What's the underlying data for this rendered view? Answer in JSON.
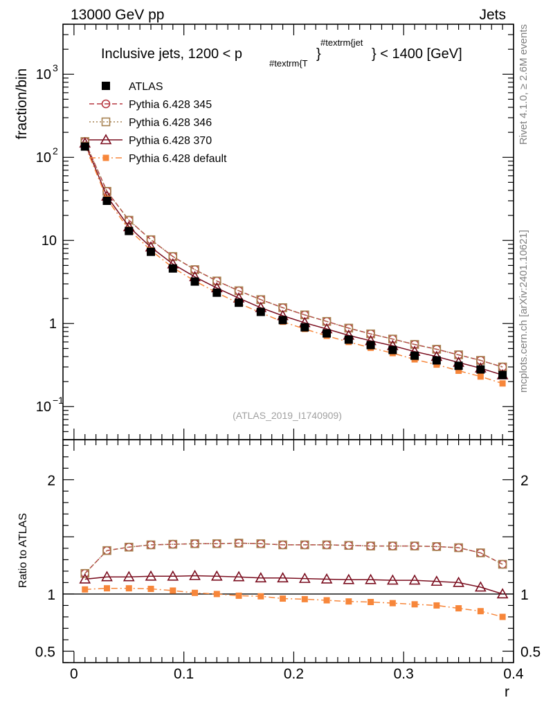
{
  "header": {
    "left": "13000 GeV pp",
    "right": "Jets"
  },
  "side_labels": {
    "rivet": "Rivet 4.1.0, ≥ 2.6M events",
    "mcplots": "mcplots.cern.ch [arXiv:2401.10621]"
  },
  "colors": {
    "atlas": "#000000",
    "p345": "#b5353f",
    "p346": "#a6804f",
    "p370": "#7a0d1e",
    "pdefault": "#f7863a",
    "watermark": "#a0a0a0"
  },
  "chart_data": [
    {
      "type": "line",
      "title_main": "Inclusive jets, 1200 < p",
      "title_sub": "#textrm{T",
      "title_sup": "#textrm{jet",
      "title_brace": "}",
      "title_end": "} < 1400 [GeV]",
      "watermark": "(ATLAS_2019_I1740909)",
      "ylabel": "fraction/bin",
      "yscale": "log",
      "ylim": [
        0.04,
        4000
      ],
      "ytick_labels": [
        {
          "value": 0.1,
          "base": "10",
          "exp": "−1"
        },
        {
          "value": 1,
          "base": "1",
          "exp": ""
        },
        {
          "value": 10,
          "base": "10",
          "exp": ""
        },
        {
          "value": 100,
          "base": "10",
          "exp": "2"
        },
        {
          "value": 1000,
          "base": "10",
          "exp": "3"
        }
      ],
      "x": [
        0.01,
        0.03,
        0.05,
        0.07,
        0.09,
        0.11,
        0.13,
        0.15,
        0.17,
        0.19,
        0.21,
        0.23,
        0.25,
        0.27,
        0.29,
        0.31,
        0.33,
        0.35,
        0.37,
        0.39
      ],
      "xlim": [
        -0.01,
        0.4
      ],
      "legend_position": "top-left",
      "series": [
        {
          "name": "ATLAS",
          "key": "atlas",
          "marker": "filled-square",
          "line": "none",
          "values": [
            135,
            30,
            13,
            7.3,
            4.6,
            3.2,
            2.35,
            1.78,
            1.38,
            1.1,
            0.9,
            0.76,
            0.64,
            0.55,
            0.48,
            0.41,
            0.36,
            0.31,
            0.28,
            0.24
          ]
        },
        {
          "name": "Pythia 6.428 345",
          "key": "p345",
          "marker": "open-circle",
          "line": "dashed",
          "values": [
            155,
            39,
            17.5,
            10.2,
            6.4,
            4.45,
            3.25,
            2.48,
            1.94,
            1.55,
            1.27,
            1.06,
            0.88,
            0.75,
            0.65,
            0.56,
            0.49,
            0.42,
            0.36,
            0.3
          ]
        },
        {
          "name": "Pythia 6.428 346",
          "key": "p346",
          "marker": "open-square",
          "line": "dotted",
          "values": [
            155,
            39,
            17.5,
            10.2,
            6.4,
            4.45,
            3.25,
            2.48,
            1.94,
            1.55,
            1.27,
            1.06,
            0.88,
            0.75,
            0.65,
            0.56,
            0.49,
            0.42,
            0.36,
            0.3
          ]
        },
        {
          "name": "Pythia 6.428 370",
          "key": "p370",
          "marker": "open-triangle",
          "line": "solid",
          "values": [
            148,
            34,
            14.6,
            8.3,
            5.2,
            3.65,
            2.68,
            2.02,
            1.55,
            1.24,
            1.02,
            0.86,
            0.72,
            0.62,
            0.54,
            0.46,
            0.4,
            0.34,
            0.29,
            0.24
          ]
        },
        {
          "name": "Pythia 6.428 default",
          "key": "pdefault",
          "marker": "filled-square-small",
          "line": "dashdot",
          "values": [
            140,
            31.5,
            13.5,
            7.6,
            4.7,
            3.25,
            2.35,
            1.75,
            1.35,
            1.05,
            0.86,
            0.71,
            0.6,
            0.51,
            0.44,
            0.37,
            0.32,
            0.27,
            0.23,
            0.19
          ]
        }
      ]
    },
    {
      "type": "line",
      "ylabel": "Ratio to ATLAS",
      "xlabel": "r",
      "ylim": [
        0.4,
        2.35
      ],
      "ytick_labels": [
        {
          "value": 0.5,
          "label": "0.5"
        },
        {
          "value": 1,
          "label": "1"
        },
        {
          "value": 2,
          "label": "2"
        }
      ],
      "xtick_labels": [
        {
          "value": 0,
          "label": "0"
        },
        {
          "value": 0.1,
          "label": "0.1"
        },
        {
          "value": 0.2,
          "label": "0.2"
        },
        {
          "value": 0.3,
          "label": "0.3"
        },
        {
          "value": 0.4,
          "label": "0.4"
        }
      ],
      "reference": 1,
      "x": [
        0.01,
        0.03,
        0.05,
        0.07,
        0.09,
        0.11,
        0.13,
        0.15,
        0.17,
        0.19,
        0.21,
        0.23,
        0.25,
        0.27,
        0.29,
        0.31,
        0.33,
        0.35,
        0.37,
        0.39
      ],
      "xlim": [
        -0.01,
        0.4
      ],
      "series": [
        {
          "name": "Pythia 6.428 345",
          "key": "p345",
          "marker": "open-circle",
          "line": "dashed",
          "values": [
            1.18,
            1.38,
            1.41,
            1.43,
            1.435,
            1.44,
            1.44,
            1.445,
            1.44,
            1.43,
            1.43,
            1.43,
            1.425,
            1.42,
            1.42,
            1.42,
            1.415,
            1.405,
            1.36,
            1.26
          ]
        },
        {
          "name": "Pythia 6.428 346",
          "key": "p346",
          "marker": "open-square",
          "line": "dotted",
          "values": [
            1.18,
            1.38,
            1.41,
            1.43,
            1.435,
            1.44,
            1.44,
            1.445,
            1.44,
            1.43,
            1.43,
            1.43,
            1.425,
            1.42,
            1.42,
            1.42,
            1.415,
            1.405,
            1.36,
            1.26
          ]
        },
        {
          "name": "Pythia 6.428 370",
          "key": "p370",
          "marker": "open-triangle",
          "line": "solid",
          "values": [
            1.13,
            1.15,
            1.15,
            1.155,
            1.155,
            1.16,
            1.155,
            1.15,
            1.14,
            1.14,
            1.135,
            1.13,
            1.125,
            1.125,
            1.12,
            1.12,
            1.11,
            1.1,
            1.06,
            1.0
          ]
        },
        {
          "name": "Pythia 6.428 default",
          "key": "pdefault",
          "marker": "filled-square-small",
          "line": "dashdot",
          "values": [
            1.04,
            1.05,
            1.05,
            1.045,
            1.03,
            1.01,
            1.0,
            0.985,
            0.98,
            0.96,
            0.955,
            0.945,
            0.935,
            0.93,
            0.92,
            0.91,
            0.9,
            0.875,
            0.85,
            0.8
          ]
        }
      ]
    }
  ]
}
